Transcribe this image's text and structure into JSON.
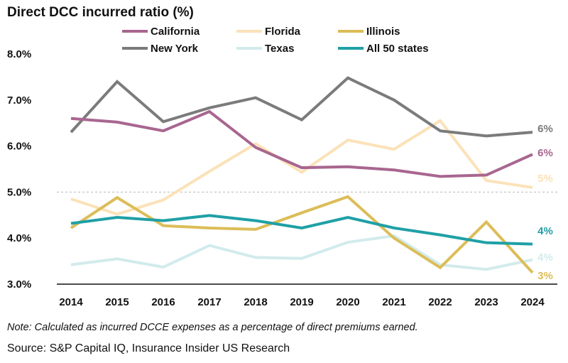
{
  "chart_data": {
    "type": "line",
    "title": "Direct DCC incurred ratio (%)",
    "xlabel": "",
    "ylabel": "",
    "categories": [
      "2014",
      "2015",
      "2016",
      "2017",
      "2018",
      "2019",
      "2020",
      "2021",
      "2022",
      "2023",
      "2024"
    ],
    "ylim": [
      3.0,
      8.0
    ],
    "yticks": [
      3.0,
      4.0,
      5.0,
      6.0,
      7.0,
      8.0
    ],
    "ytick_labels": [
      "3.0%",
      "4.0%",
      "5.0%",
      "6.0%",
      "7.0%",
      "8.0%"
    ],
    "reference_line": 5.0,
    "legend_position": "top",
    "series": [
      {
        "name": "California",
        "color": "#a8668f",
        "values": [
          6.6,
          6.52,
          6.33,
          6.75,
          5.97,
          5.53,
          5.55,
          5.48,
          5.34,
          5.37,
          5.82
        ],
        "end_label": "6%"
      },
      {
        "name": "Florida",
        "color": "#fbe2b8",
        "values": [
          4.85,
          4.52,
          4.83,
          5.45,
          6.05,
          5.43,
          6.13,
          5.93,
          6.55,
          5.25,
          5.1
        ],
        "end_label": "5%"
      },
      {
        "name": "Illinois",
        "color": "#dcbd58",
        "values": [
          4.22,
          4.88,
          4.27,
          4.22,
          4.19,
          4.55,
          4.9,
          4.0,
          3.36,
          4.35,
          3.25
        ],
        "end_label": "3%"
      },
      {
        "name": "New York",
        "color": "#7b7b7b",
        "values": [
          6.3,
          7.4,
          6.53,
          6.83,
          7.05,
          6.57,
          7.48,
          7.0,
          6.33,
          6.22,
          6.3
        ],
        "end_label": "6%"
      },
      {
        "name": "Texas",
        "color": "#d2ebec",
        "values": [
          3.42,
          3.55,
          3.37,
          3.84,
          3.58,
          3.56,
          3.91,
          4.05,
          3.42,
          3.32,
          3.53
        ],
        "end_label": "4%"
      },
      {
        "name": "All 50 states",
        "color": "#1fa0a6",
        "values": [
          4.32,
          4.45,
          4.38,
          4.49,
          4.38,
          4.22,
          4.45,
          4.22,
          4.07,
          3.9,
          3.87
        ],
        "end_label": "4%"
      }
    ]
  },
  "footer": {
    "note": "Note: Calculated as incurred DCCE expenses as a percentage of direct premiums earned.",
    "source": "Source: S&P Capital IQ, Insurance Insider US Research"
  }
}
